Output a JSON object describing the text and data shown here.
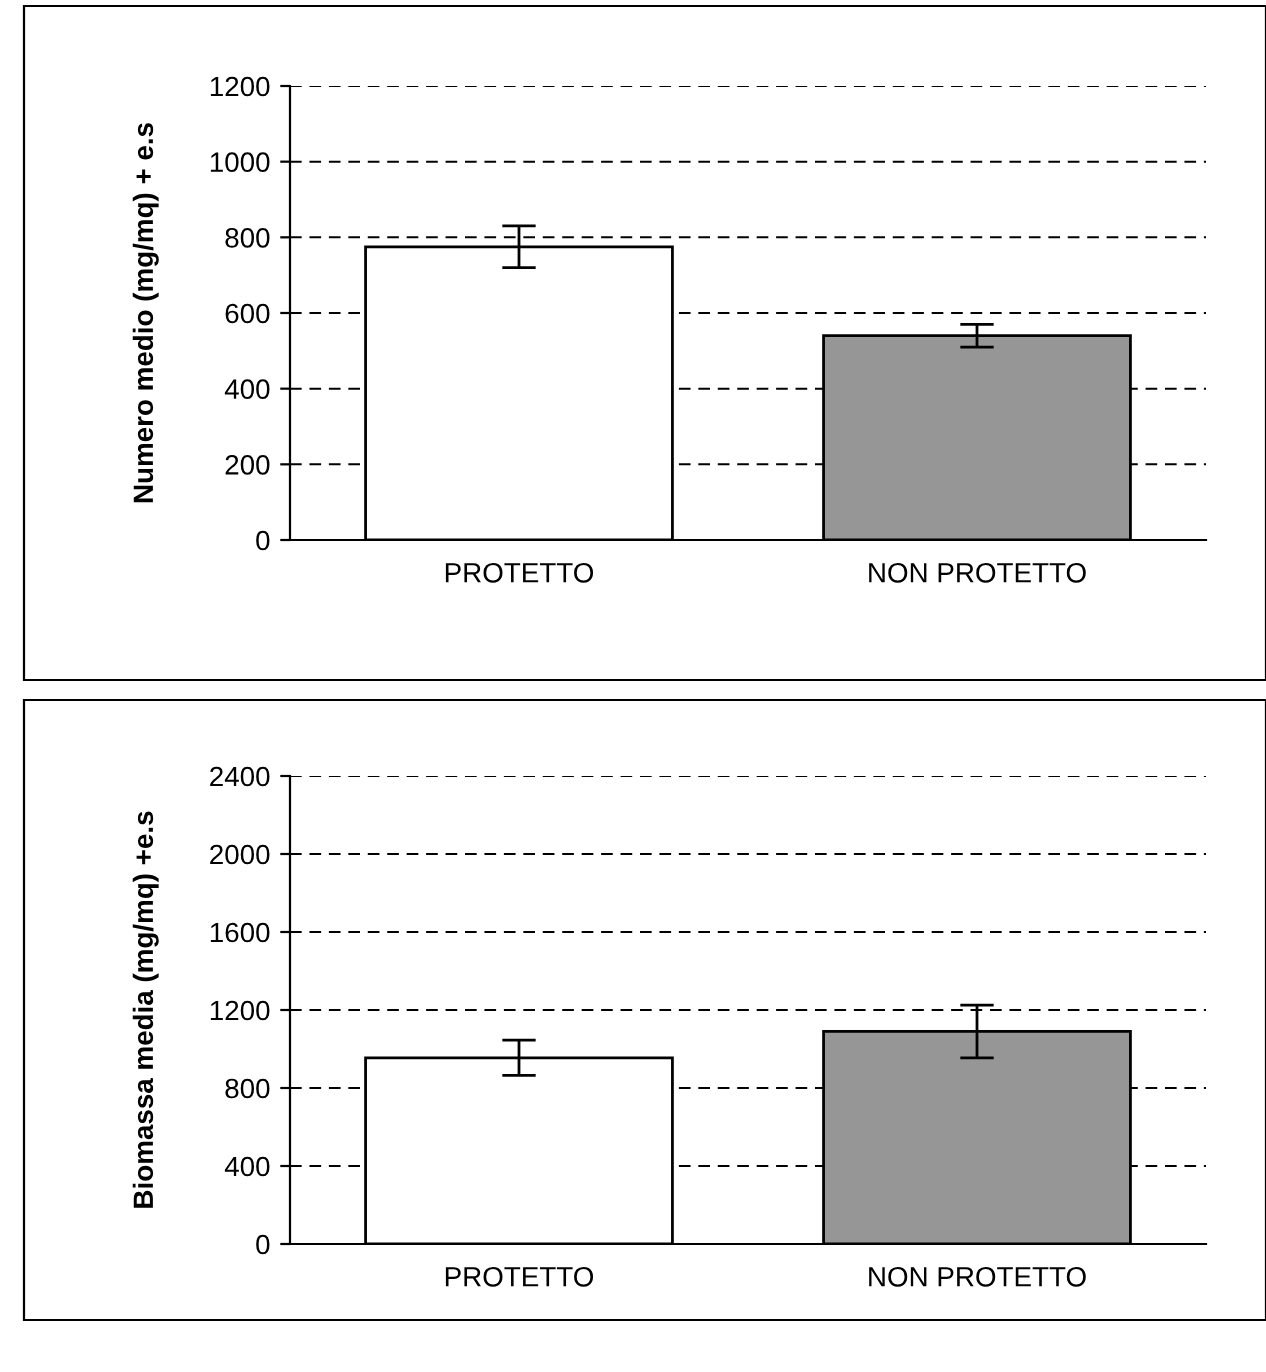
{
  "chart_data": [
    {
      "type": "bar",
      "ylabel": "Numero medio (mg/mq) + e.s",
      "categories": [
        "PROTETTO",
        "NON PROTETTO"
      ],
      "values": [
        775,
        540
      ],
      "errors": [
        55,
        30
      ],
      "colors": [
        "#ffffff",
        "#969696"
      ],
      "ylim": [
        0,
        1200
      ],
      "yticks": [
        0,
        200,
        400,
        600,
        800,
        1000,
        1200
      ],
      "grid": "y"
    },
    {
      "type": "bar",
      "ylabel": "Biomassa media (mg/mq) +e.s",
      "categories": [
        "PROTETTO",
        "NON PROTETTO"
      ],
      "values": [
        955,
        1090
      ],
      "errors": [
        90,
        135
      ],
      "colors": [
        "#ffffff",
        "#969696"
      ],
      "ylim": [
        0,
        2400
      ],
      "yticks": [
        0,
        400,
        800,
        1200,
        1600,
        2000,
        2400
      ],
      "grid": "y"
    }
  ]
}
